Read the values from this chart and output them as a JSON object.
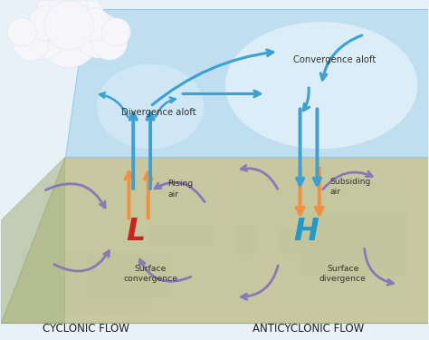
{
  "bg_color": "#e8f0f8",
  "ground_color": "#c8c8a0",
  "ground_color2": "#b0c090",
  "ground_edge": "#a0a880",
  "sky_plane_color": "#b8ddf0",
  "sky_plane_edge": "#90c8e8",
  "cloud_color": "#f5f5fa",
  "cloud_edge": "#d8d8e8",
  "arrow_blue": "#3ca0d0",
  "arrow_blue2": "#5ab8e8",
  "arrow_purple": "#8878b8",
  "arrow_orange": "#f09040",
  "L_color": "#cc2222",
  "H_color": "#2299cc",
  "text_color": "#333333",
  "title_L": "CYCLONIC FLOW",
  "title_H": "ANTICYCLONIC FLOW",
  "label_div_aloft": "Divergence aloft",
  "label_conv_aloft": "Convergence aloft",
  "label_rising": "Rising\nair",
  "label_subsiding": "Subsiding\nair",
  "label_surf_conv": "Surface\nconvergence",
  "label_surf_div": "Surface\ndivergence",
  "figsize": [
    4.74,
    3.75
  ],
  "dpi": 100
}
